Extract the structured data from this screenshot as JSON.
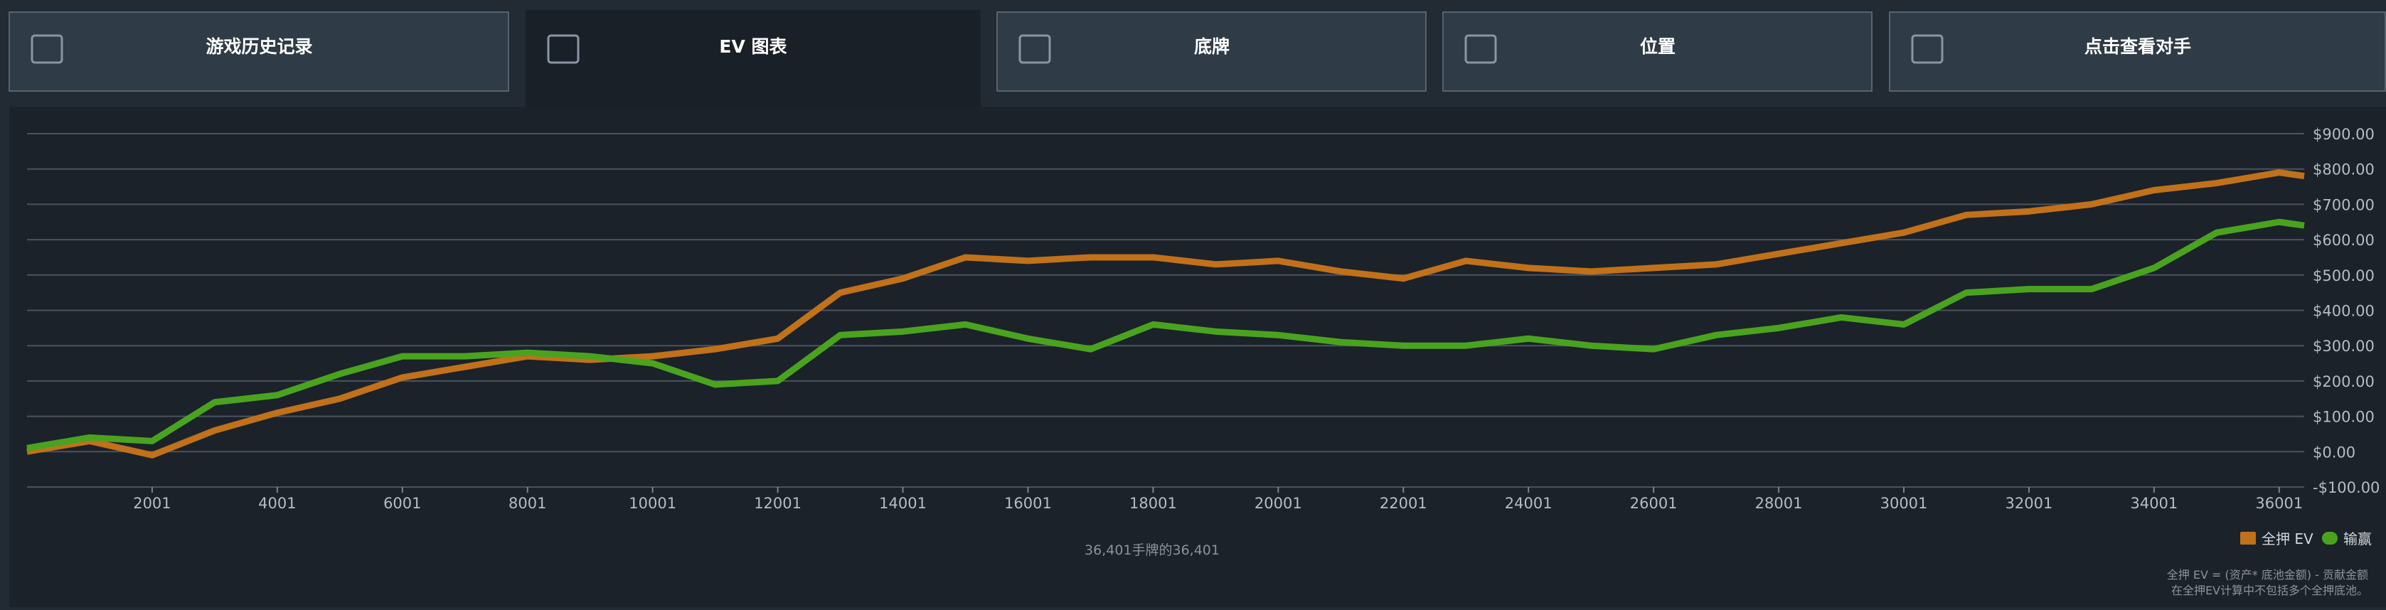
{
  "tabs": [
    "游戏历史记录",
    "EV 图表",
    "底牌",
    "位置",
    "点击查看对手"
  ],
  "chart_data": {
    "type": "line",
    "x": [
      1,
      1001,
      2001,
      3001,
      4001,
      5001,
      6001,
      7001,
      8001,
      9001,
      10001,
      11001,
      12001,
      13001,
      14001,
      15001,
      16001,
      17001,
      18001,
      19001,
      20001,
      21001,
      22001,
      23001,
      24001,
      25001,
      26001,
      27001,
      28001,
      29001,
      30001,
      31001,
      32001,
      33001,
      34001,
      35001,
      36001,
      36401
    ],
    "series": [
      {
        "name": "全押 EV",
        "color": "#c0711a",
        "values": [
          0,
          30,
          -10,
          60,
          110,
          150,
          210,
          240,
          270,
          260,
          270,
          290,
          320,
          450,
          490,
          550,
          540,
          550,
          550,
          530,
          540,
          510,
          490,
          540,
          520,
          510,
          520,
          530,
          560,
          590,
          620,
          670,
          680,
          700,
          740,
          760,
          790,
          780
        ]
      },
      {
        "name": "输赢",
        "color": "#4aa31e",
        "values": [
          10,
          40,
          30,
          140,
          160,
          220,
          270,
          270,
          280,
          270,
          250,
          190,
          200,
          330,
          340,
          360,
          320,
          290,
          360,
          340,
          330,
          310,
          300,
          300,
          320,
          300,
          290,
          330,
          350,
          380,
          360,
          450,
          460,
          460,
          520,
          620,
          650,
          640
        ]
      }
    ],
    "xlim": [
      1,
      36401
    ],
    "xticks": [
      2001,
      4001,
      6001,
      8001,
      10001,
      12001,
      14001,
      16001,
      18001,
      20001,
      22001,
      24001,
      26001,
      28001,
      30001,
      32001,
      34001,
      36001
    ],
    "ylim": [
      -100,
      900
    ],
    "yticks": [
      {
        "value": 900,
        "label": "$900.00"
      },
      {
        "value": 800,
        "label": "$800.00"
      },
      {
        "value": 700,
        "label": "$700.00"
      },
      {
        "value": 600,
        "label": "$600.00"
      },
      {
        "value": 500,
        "label": "$500.00"
      },
      {
        "value": 400,
        "label": "$400.00"
      },
      {
        "value": 300,
        "label": "$300.00"
      },
      {
        "value": 200,
        "label": "$200.00"
      },
      {
        "value": 100,
        "label": "$100.00"
      },
      {
        "value": 0,
        "label": "$0.00"
      },
      {
        "value": -100,
        "label": "-$100.00"
      }
    ],
    "grid": true,
    "footer": "36,401手牌的36,401",
    "notes": [
      "全押 EV = (资产* 底池金额) - 贡献金额",
      "在全押EV计算中不包括多个全押底池。"
    ]
  }
}
